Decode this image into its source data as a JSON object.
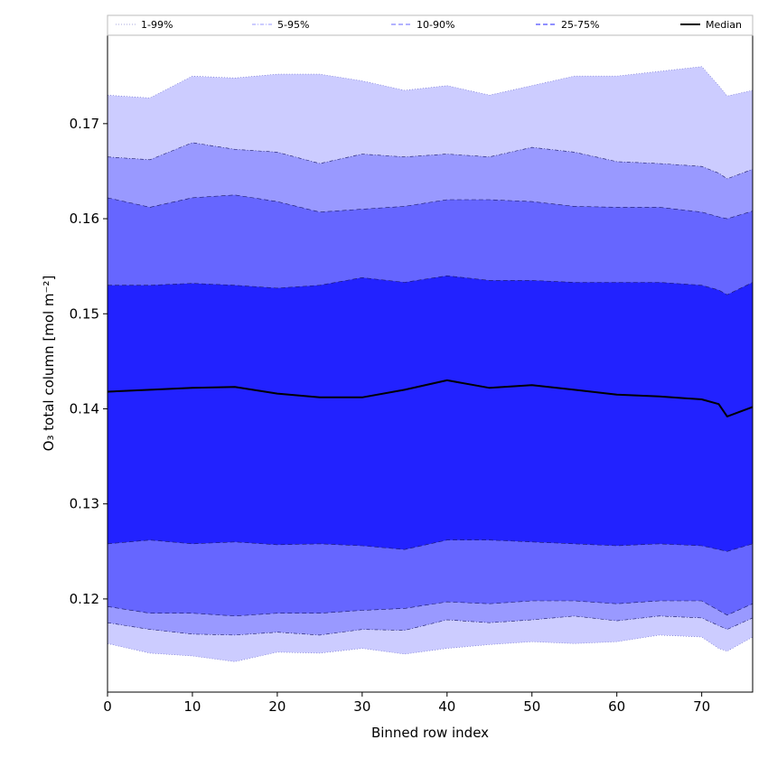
{
  "chart_data": {
    "type": "area",
    "xlabel": "Binned row index",
    "ylabel": "O₃ total column [mol m⁻²]",
    "xlim": [
      0,
      76
    ],
    "ylim": [
      0.1102,
      0.1793
    ],
    "x_ticks": [
      0,
      10,
      20,
      30,
      40,
      50,
      60,
      70
    ],
    "x_tick_labels": [
      "0",
      "10",
      "20",
      "30",
      "40",
      "50",
      "60",
      "70"
    ],
    "y_ticks": [
      0.12,
      0.13,
      0.14,
      0.15,
      0.16,
      0.17
    ],
    "y_tick_labels": [
      "0.12",
      "0.13",
      "0.14",
      "0.15",
      "0.16",
      "0.17"
    ],
    "grid": false,
    "legend_position": "top, in a row above the plot",
    "x": [
      0,
      5,
      10,
      15,
      20,
      25,
      30,
      35,
      40,
      45,
      50,
      55,
      60,
      65,
      70,
      72,
      73,
      76
    ],
    "bands": [
      {
        "name": "1-99%",
        "fill_color": "#ccccff",
        "edge_style": "dotted",
        "lower": [
          0.1153,
          0.1143,
          0.114,
          0.1134,
          0.1144,
          0.1143,
          0.1148,
          0.1142,
          0.1148,
          0.1152,
          0.1155,
          0.1153,
          0.1155,
          0.1162,
          0.116,
          0.1148,
          0.1145,
          0.116
        ],
        "upper": [
          0.173,
          0.1727,
          0.175,
          0.1748,
          0.1752,
          0.1752,
          0.1745,
          0.1735,
          0.174,
          0.173,
          0.174,
          0.175,
          0.175,
          0.1755,
          0.176,
          0.174,
          0.1729,
          0.1735
        ]
      },
      {
        "name": "5-95%",
        "fill_color": "#9999ff",
        "edge_style": "dash-dot",
        "lower": [
          0.1175,
          0.1168,
          0.1163,
          0.1162,
          0.1165,
          0.1162,
          0.1168,
          0.1167,
          0.1178,
          0.1175,
          0.1178,
          0.1182,
          0.1177,
          0.1182,
          0.118,
          0.1172,
          0.1168,
          0.118
        ],
        "upper": [
          0.1665,
          0.1662,
          0.168,
          0.1673,
          0.167,
          0.1658,
          0.1668,
          0.1665,
          0.1668,
          0.1665,
          0.1675,
          0.167,
          0.166,
          0.1658,
          0.1655,
          0.1648,
          0.1642,
          0.1652
        ]
      },
      {
        "name": "10-90%",
        "fill_color": "#6666ff",
        "edge_style": "dashed",
        "lower": [
          0.1192,
          0.1185,
          0.1185,
          0.1182,
          0.1185,
          0.1185,
          0.1188,
          0.119,
          0.1197,
          0.1195,
          0.1198,
          0.1198,
          0.1195,
          0.1198,
          0.1198,
          0.1188,
          0.1183,
          0.1195
        ],
        "upper": [
          0.1622,
          0.1612,
          0.1622,
          0.1625,
          0.1618,
          0.1607,
          0.161,
          0.1613,
          0.162,
          0.162,
          0.1618,
          0.1613,
          0.1612,
          0.1612,
          0.1607,
          0.1602,
          0.16,
          0.1608
        ]
      },
      {
        "name": "25-75%",
        "fill_color": "#2222ff",
        "edge_style": "dashed",
        "lower": [
          0.1258,
          0.1262,
          0.1258,
          0.126,
          0.1257,
          0.1258,
          0.1256,
          0.1252,
          0.1262,
          0.1262,
          0.126,
          0.1258,
          0.1256,
          0.1258,
          0.1256,
          0.1252,
          0.125,
          0.1258
        ],
        "upper": [
          0.153,
          0.153,
          0.1532,
          0.153,
          0.1527,
          0.153,
          0.1538,
          0.1533,
          0.154,
          0.1535,
          0.1535,
          0.1533,
          0.1533,
          0.1533,
          0.153,
          0.1525,
          0.152,
          0.1533
        ]
      }
    ],
    "median": {
      "name": "Median",
      "color": "#000000",
      "values": [
        0.1418,
        0.142,
        0.1422,
        0.1423,
        0.1416,
        0.1412,
        0.1412,
        0.142,
        0.143,
        0.1422,
        0.1425,
        0.142,
        0.1415,
        0.1413,
        0.141,
        0.1405,
        0.1392,
        0.1402
      ]
    }
  }
}
